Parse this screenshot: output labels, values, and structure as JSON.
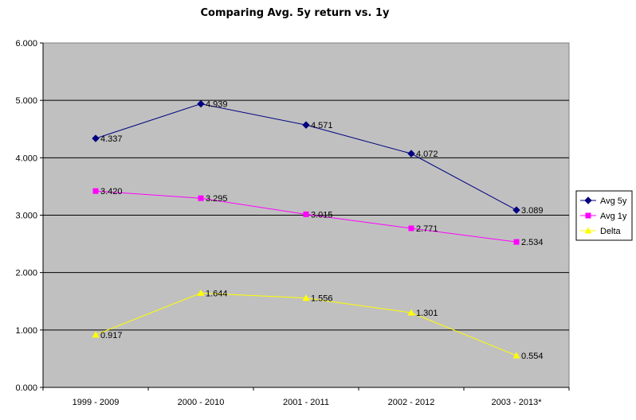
{
  "chart_data": {
    "type": "line",
    "title": "Comparing Avg. 5y return vs. 1y",
    "categories": [
      "1999 - 2009",
      "2000 - 2010",
      "2001 - 2011",
      "2002 - 2012",
      "2003 - 2013*"
    ],
    "y_ticks": [
      "0.000",
      "1.000",
      "2.000",
      "3.000",
      "4.000",
      "5.000",
      "6.000"
    ],
    "ylim": [
      0,
      6
    ],
    "grid": true,
    "legend_position": "right",
    "series": [
      {
        "name": "Avg 5y",
        "color": "#000080",
        "marker": "diamond",
        "values": [
          4.337,
          4.939,
          4.571,
          4.072,
          3.089
        ],
        "labels": [
          "4.337",
          "4.939",
          "4.571",
          "4.072",
          "3.089"
        ]
      },
      {
        "name": "Avg 1y",
        "color": "#FF00FF",
        "marker": "square",
        "values": [
          3.42,
          3.295,
          3.015,
          2.771,
          2.534
        ],
        "labels": [
          "3.420",
          "3.295",
          "3.015",
          "2.771",
          "2.534"
        ]
      },
      {
        "name": "Delta",
        "color": "#FFFF00",
        "marker": "triangle",
        "values": [
          0.917,
          1.644,
          1.556,
          1.301,
          0.554
        ],
        "labels": [
          "0.917",
          "1.644",
          "1.556",
          "1.301",
          "0.554"
        ]
      }
    ],
    "plot_background": "#C0C0C0"
  }
}
